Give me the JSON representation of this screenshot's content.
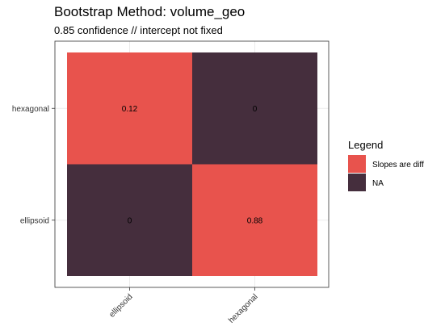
{
  "chart_data": {
    "type": "heatmap",
    "title": "Bootstrap Method: volume_geo",
    "subtitle": "0.85 confidence // intercept not fixed",
    "x_categories": [
      "ellipsoid",
      "hexagonal"
    ],
    "y_categories": [
      "ellipsoid",
      "hexagonal"
    ],
    "cells": [
      {
        "x": "ellipsoid",
        "y": "hexagonal",
        "value": "0.12",
        "fill_key": "Slopes are diff"
      },
      {
        "x": "hexagonal",
        "y": "hexagonal",
        "value": "0",
        "fill_key": "NA"
      },
      {
        "x": "ellipsoid",
        "y": "ellipsoid",
        "value": "0",
        "fill_key": "NA"
      },
      {
        "x": "hexagonal",
        "y": "ellipsoid",
        "value": "0.88",
        "fill_key": "Slopes are diff"
      }
    ],
    "legend": {
      "title": "Legend",
      "placement": "right",
      "entries": [
        {
          "label": "Slopes are diff",
          "color": "#e8534d"
        },
        {
          "label": "NA",
          "color": "#452e3d"
        }
      ]
    },
    "grid": true
  }
}
